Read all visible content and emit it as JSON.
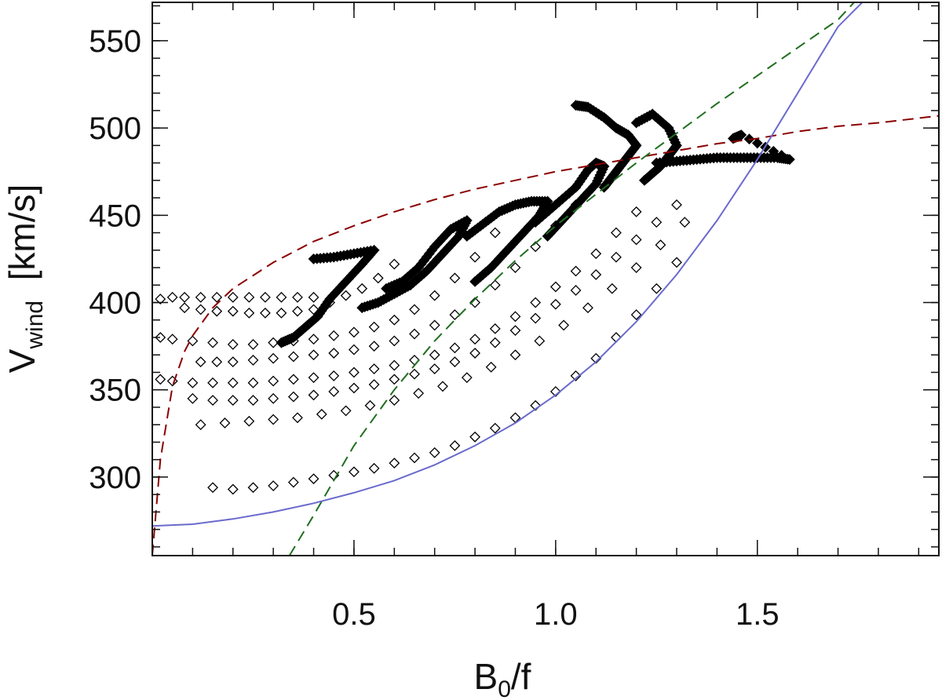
{
  "chart_data": {
    "type": "scatter",
    "title": "",
    "xlabel": {
      "base": "B",
      "sub": "0",
      "rest": "/f"
    },
    "ylabel": {
      "base": "V",
      "sub": "wind",
      "rest": "  [km/s]"
    },
    "xlim": [
      0.0,
      1.95
    ],
    "ylim": [
      255,
      572
    ],
    "x_ticks": [
      {
        "value": 0.5,
        "label": "0.5"
      },
      {
        "value": 1.0,
        "label": "1.0"
      },
      {
        "value": 1.5,
        "label": "1.5"
      }
    ],
    "y_ticks": [
      {
        "value": 300,
        "label": "300"
      },
      {
        "value": 350,
        "label": "350"
      },
      {
        "value": 400,
        "label": "400"
      },
      {
        "value": 450,
        "label": "450"
      },
      {
        "value": 500,
        "label": "500"
      },
      {
        "value": 550,
        "label": "550"
      }
    ],
    "x_minor_step": 0.1,
    "y_minor_step": 10,
    "legend": "none",
    "grid": false,
    "series": [
      {
        "kind": "markers",
        "marker": "diamond",
        "color": "#000000",
        "tracks": [
          {
            "x": [
              0.02,
              0.05,
              0.08,
              0.12,
              0.16,
              0.2,
              0.24,
              0.28,
              0.32,
              0.36,
              0.4
            ],
            "y": [
              402,
              403,
              403,
              403,
              403,
              403,
              403,
              403,
              403,
              403,
              403
            ]
          },
          {
            "x": [
              0.08,
              0.12,
              0.16,
              0.2,
              0.24,
              0.28,
              0.32,
              0.36,
              0.4,
              0.44,
              0.48,
              0.52,
              0.56,
              0.6
            ],
            "y": [
              397,
              396,
              395,
              395,
              394,
              394,
              394,
              395,
              396,
              400,
              404,
              408,
              414,
              422
            ]
          },
          {
            "x": [
              0.02,
              0.05,
              0.1,
              0.15,
              0.2,
              0.25,
              0.3,
              0.35,
              0.4,
              0.45,
              0.5,
              0.55,
              0.6,
              0.65,
              0.7,
              0.75,
              0.8,
              0.85
            ],
            "y": [
              380,
              379,
              378,
              377,
              376,
              376,
              377,
              378,
              379,
              381,
              383,
              386,
              390,
              396,
              404,
              414,
              426,
              440
            ]
          },
          {
            "x": [
              0.12,
              0.16,
              0.2,
              0.25,
              0.3,
              0.35,
              0.4,
              0.45,
              0.5,
              0.55,
              0.6,
              0.65,
              0.7,
              0.75,
              0.8,
              0.85,
              0.9,
              0.95,
              1.0,
              1.05
            ],
            "y": [
              366,
              366,
              366,
              367,
              368,
              369,
              370,
              371,
              373,
              375,
              378,
              382,
              387,
              393,
              400,
              410,
              420,
              432,
              444,
              456
            ]
          },
          {
            "x": [
              0.02,
              0.05,
              0.1,
              0.15,
              0.2,
              0.25,
              0.3,
              0.35,
              0.4,
              0.45,
              0.5,
              0.55,
              0.6,
              0.65,
              0.7,
              0.75,
              0.8,
              0.85,
              0.9,
              0.95,
              1.0,
              1.05,
              1.1,
              1.15,
              1.2
            ],
            "y": [
              356,
              355,
              354,
              354,
              354,
              354,
              355,
              356,
              357,
              358,
              360,
              362,
              364,
              367,
              370,
              374,
              379,
              385,
              392,
              400,
              409,
              418,
              428,
              440,
              452
            ]
          },
          {
            "x": [
              0.1,
              0.15,
              0.2,
              0.25,
              0.3,
              0.35,
              0.4,
              0.45,
              0.5,
              0.55,
              0.6,
              0.65,
              0.7,
              0.75,
              0.8,
              0.85,
              0.9,
              0.95,
              1.0,
              1.05,
              1.1,
              1.15,
              1.2,
              1.25,
              1.3
            ],
            "y": [
              345,
              344,
              344,
              344,
              345,
              346,
              347,
              349,
              351,
              353,
              356,
              359,
              362,
              366,
              371,
              377,
              384,
              391,
              399,
              407,
              416,
              426,
              436,
              446,
              456
            ]
          },
          {
            "x": [
              0.12,
              0.18,
              0.24,
              0.3,
              0.36,
              0.42,
              0.48,
              0.54,
              0.6,
              0.66,
              0.72,
              0.78,
              0.84,
              0.9,
              0.96,
              1.02,
              1.08,
              1.14,
              1.2,
              1.26,
              1.32
            ],
            "y": [
              330,
              331,
              332,
              333,
              334,
              336,
              338,
              341,
              344,
              348,
              352,
              357,
              363,
              370,
              378,
              387,
              397,
              408,
              420,
              433,
              446
            ]
          },
          {
            "x": [
              0.15,
              0.2,
              0.25,
              0.3,
              0.35,
              0.4,
              0.45,
              0.5,
              0.55,
              0.6,
              0.65,
              0.7,
              0.75,
              0.8,
              0.85,
              0.9,
              0.95,
              1.0,
              1.05,
              1.1,
              1.15,
              1.2,
              1.25,
              1.3
            ],
            "y": [
              294,
              293,
              294,
              295,
              297,
              299,
              301,
              303,
              305,
              308,
              311,
              314,
              318,
              323,
              328,
              334,
              341,
              349,
              358,
              368,
              380,
              393,
              408,
              423
            ]
          }
        ]
      },
      {
        "kind": "markers",
        "marker": "dense",
        "color": "#000000",
        "tracks": [
          {
            "x": [
              0.4,
              0.45,
              0.5,
              0.55,
              0.52,
              0.48,
              0.44,
              0.41,
              0.38,
              0.35,
              0.32
            ],
            "y": [
              425,
              426,
              428,
              430,
              422,
              412,
              402,
              392,
              386,
              380,
              377
            ]
          },
          {
            "x": [
              0.58,
              0.62,
              0.66,
              0.7,
              0.74,
              0.78,
              0.76,
              0.72,
              0.68,
              0.64,
              0.6,
              0.56,
              0.52
            ],
            "y": [
              408,
              412,
              420,
              432,
              442,
              447,
              438,
              428,
              418,
              410,
              405,
              400,
              397
            ]
          },
          {
            "x": [
              0.78,
              0.82,
              0.86,
              0.9,
              0.94,
              0.98,
              0.96,
              0.92,
              0.88,
              0.84,
              0.8
            ],
            "y": [
              438,
              445,
              452,
              456,
              458,
              458,
              450,
              440,
              430,
              420,
              412
            ]
          },
          {
            "x": [
              0.95,
              1.0,
              1.05,
              1.08,
              1.1,
              1.12,
              1.1,
              1.06,
              1.02,
              0.98
            ],
            "y": [
              446,
              456,
              466,
              476,
              480,
              478,
              468,
              458,
              448,
              438
            ]
          },
          {
            "x": [
              1.05,
              1.08,
              1.12,
              1.15,
              1.18,
              1.2,
              1.18,
              1.16,
              1.14,
              1.12
            ],
            "y": [
              513,
              512,
              506,
              500,
              496,
              490,
              484,
              478,
              472,
              466
            ]
          },
          {
            "x": [
              1.2,
              1.24,
              1.28,
              1.3,
              1.28,
              1.26,
              1.24,
              1.22
            ],
            "y": [
              503,
              508,
              500,
              490,
              484,
              478,
              474,
              470
            ]
          },
          {
            "x": [
              1.25,
              1.3,
              1.35,
              1.4,
              1.45,
              1.5,
              1.55,
              1.58,
              1.46,
              1.44
            ],
            "y": [
              480,
              481,
              482,
              483,
              483,
              483,
              483,
              482,
              496,
              494
            ]
          }
        ]
      },
      {
        "kind": "line",
        "style": "dashed",
        "color": "#8b0000",
        "x": [
          0.0,
          0.02,
          0.05,
          0.08,
          0.1,
          0.15,
          0.2,
          0.3,
          0.4,
          0.5,
          0.6,
          0.7,
          0.8,
          0.9,
          1.0,
          1.1,
          1.2,
          1.3,
          1.4,
          1.5,
          1.6,
          1.7,
          1.8,
          1.95
        ],
        "y": [
          255,
          310,
          352,
          372,
          381,
          397,
          408,
          423,
          435,
          444,
          452,
          459,
          465,
          470,
          475,
          479,
          483,
          487,
          491,
          494,
          498,
          501,
          503,
          507
        ]
      },
      {
        "kind": "line",
        "style": "dashed",
        "color": "#1f6f1f",
        "x": [
          0.34,
          0.4,
          0.5,
          0.6,
          0.7,
          0.8,
          0.9,
          1.0,
          1.1,
          1.2,
          1.3,
          1.4,
          1.5,
          1.6,
          1.7,
          1.74
        ],
        "y": [
          255,
          278,
          318,
          350,
          378,
          402,
          424,
          444,
          462,
          480,
          497,
          514,
          530,
          546,
          562,
          572
        ]
      },
      {
        "kind": "line",
        "style": "solid",
        "color": "#6a6acd",
        "x": [
          0.0,
          0.1,
          0.2,
          0.3,
          0.4,
          0.5,
          0.6,
          0.7,
          0.8,
          0.9,
          1.0,
          1.1,
          1.2,
          1.3,
          1.4,
          1.5,
          1.6,
          1.7,
          1.76
        ],
        "y": [
          272,
          273,
          276,
          280,
          285,
          291,
          298,
          307,
          318,
          331,
          347,
          366,
          389,
          416,
          447,
          482,
          520,
          558,
          572
        ]
      }
    ]
  }
}
